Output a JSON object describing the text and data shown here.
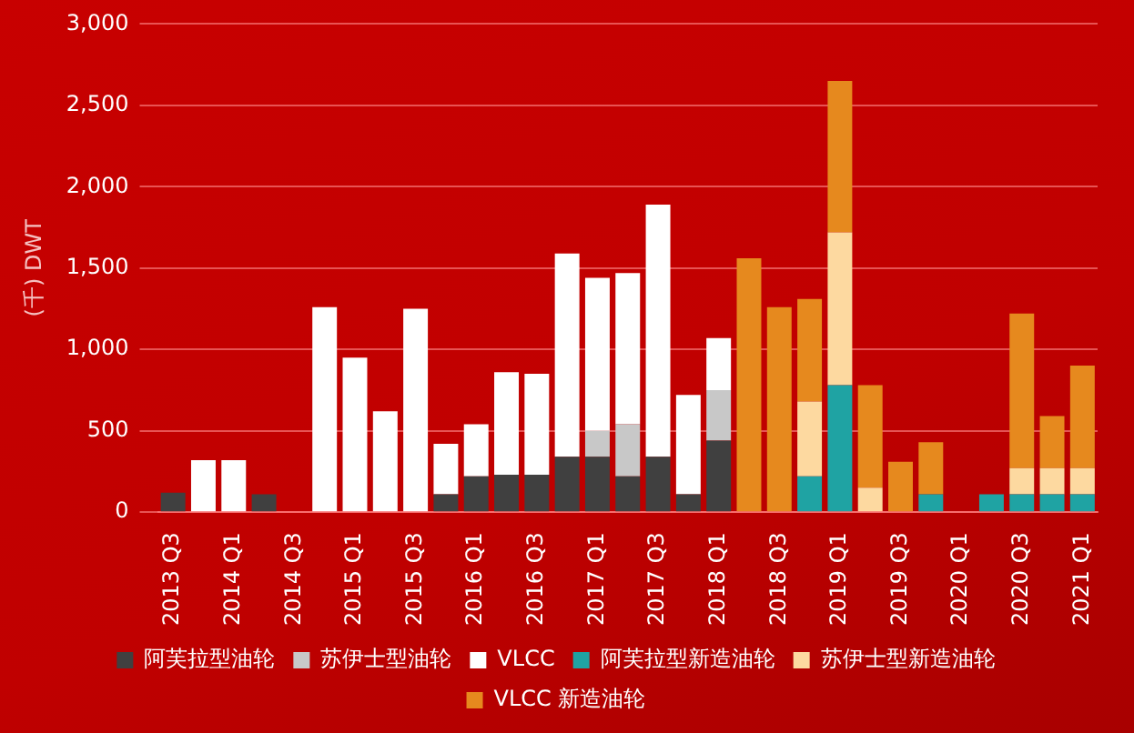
{
  "chart_data": {
    "type": "bar",
    "stacked": true,
    "ylabel": "(千) DWT",
    "categories": [
      "2013 Q3",
      null,
      "2014 Q1",
      null,
      "2014 Q3",
      null,
      "2015 Q1",
      null,
      "2015 Q3",
      null,
      "2016 Q1",
      null,
      "2016 Q3",
      null,
      "2017 Q1",
      null,
      "2017 Q3",
      null,
      "2018 Q1",
      null,
      "2018 Q3",
      null,
      "2019 Q1",
      null,
      "2019 Q3",
      null,
      "2020 Q1",
      null,
      "2020 Q3",
      null,
      "2021 Q1"
    ],
    "series": [
      {
        "name": "阿芙拉型油轮",
        "color": "#404040",
        "values": [
          120,
          null,
          null,
          110,
          null,
          null,
          null,
          null,
          null,
          110,
          220,
          230,
          230,
          340,
          340,
          220,
          340,
          110,
          440,
          null,
          null,
          null,
          null,
          null,
          null,
          null,
          null,
          null,
          null,
          null,
          null
        ]
      },
      {
        "name": "苏伊士型油轮",
        "color": "#c8c8c8",
        "values": [
          null,
          null,
          null,
          null,
          null,
          null,
          null,
          null,
          null,
          null,
          null,
          null,
          null,
          null,
          160,
          320,
          null,
          null,
          310,
          null,
          null,
          null,
          null,
          null,
          null,
          null,
          null,
          null,
          null,
          null,
          null
        ]
      },
      {
        "name": "VLCC",
        "color": "#ffffff",
        "values": [
          null,
          320,
          320,
          null,
          null,
          1260,
          950,
          620,
          1250,
          310,
          320,
          630,
          620,
          1250,
          940,
          930,
          1550,
          610,
          320,
          null,
          null,
          null,
          null,
          null,
          null,
          null,
          null,
          null,
          null,
          null,
          null
        ]
      },
      {
        "name": "阿芙拉型新造油轮",
        "color": "#1fa3a3",
        "values": [
          null,
          null,
          null,
          null,
          null,
          null,
          null,
          null,
          null,
          null,
          null,
          null,
          null,
          null,
          null,
          null,
          null,
          null,
          null,
          null,
          null,
          220,
          780,
          null,
          null,
          110,
          null,
          110,
          110,
          110,
          110
        ]
      },
      {
        "name": "苏伊士型新造油轮",
        "color": "#fdd9a0",
        "values": [
          null,
          null,
          null,
          null,
          null,
          null,
          null,
          null,
          null,
          null,
          null,
          null,
          null,
          null,
          null,
          null,
          null,
          null,
          null,
          null,
          null,
          460,
          940,
          150,
          null,
          null,
          null,
          null,
          160,
          160,
          160
        ]
      },
      {
        "name": "VLCC 新造油轮",
        "color": "#e6891e",
        "values": [
          null,
          null,
          null,
          null,
          null,
          null,
          null,
          null,
          null,
          null,
          null,
          null,
          null,
          null,
          null,
          null,
          null,
          null,
          null,
          1560,
          1260,
          630,
          930,
          630,
          310,
          320,
          null,
          null,
          950,
          320,
          630
        ]
      }
    ],
    "ylim": [
      0,
      3000
    ],
    "yticks": [
      0,
      500,
      {
        "value": 1000,
        "label": "1,000"
      },
      {
        "value": 1500,
        "label": "1,500"
      },
      {
        "value": 2000,
        "label": "2,000"
      },
      {
        "value": 2500,
        "label": "2,500"
      },
      {
        "value": 3000,
        "label": "3,000"
      }
    ],
    "grid": "y",
    "legend": "bottom"
  }
}
